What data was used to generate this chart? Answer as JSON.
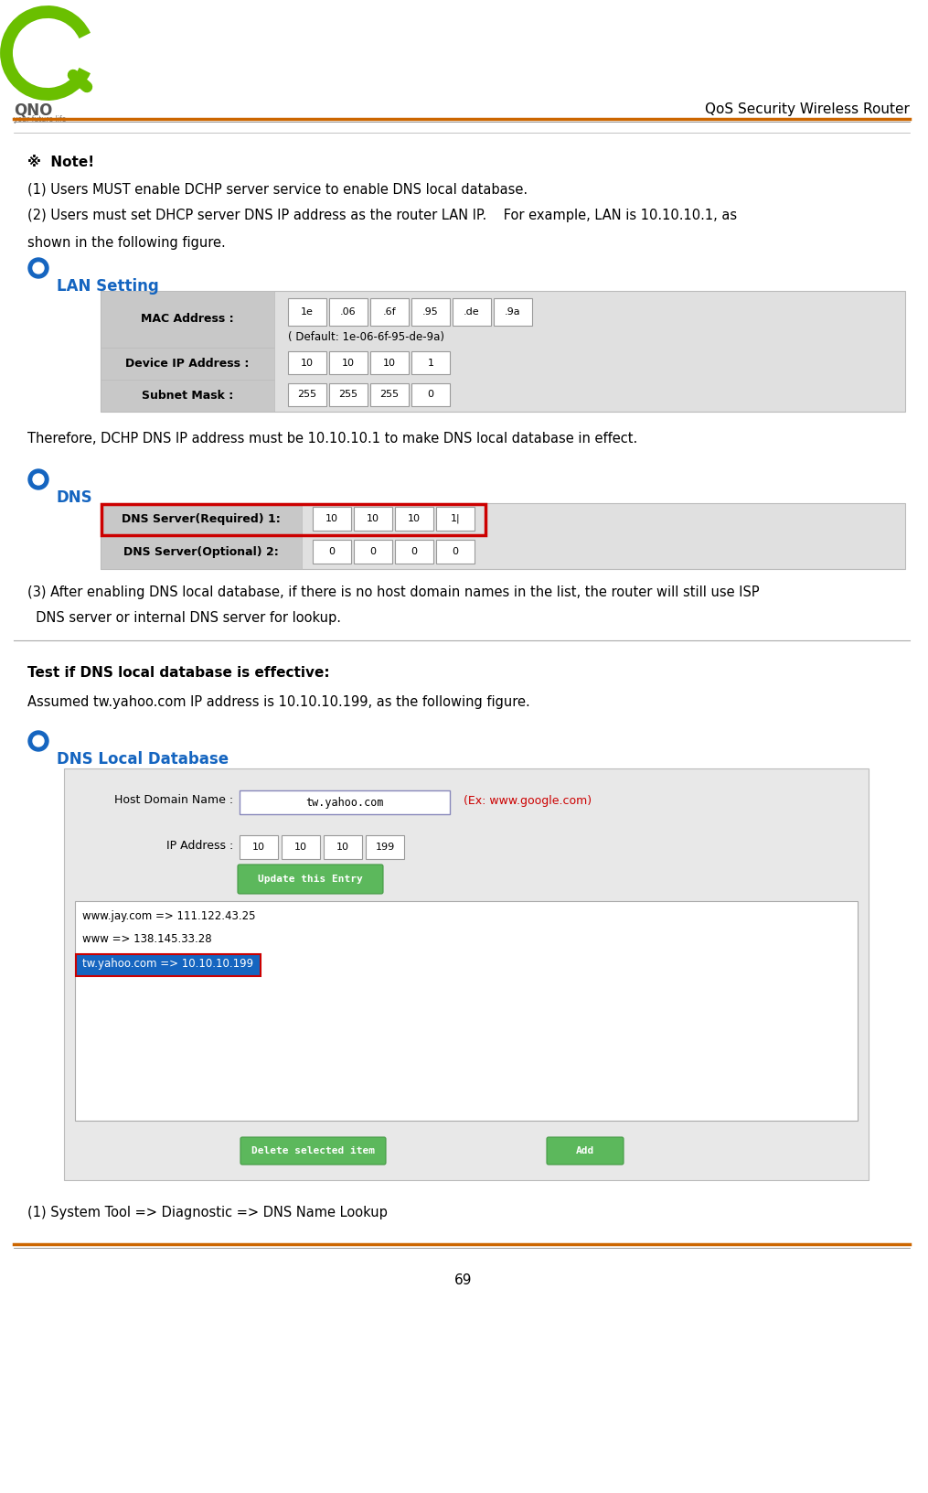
{
  "page_width": 10.15,
  "page_height": 16.32,
  "bg_color": "#ffffff",
  "header_text": "QoS Security Wireless Router",
  "note_bold": "※  Note!",
  "line1": "(1) Users MUST enable DCHP server service to enable DNS local database.",
  "line2a": "(2) Users must set DHCP server DNS IP address as the router LAN IP.    For example, LAN is 10.10.10.1, as",
  "line2b": "shown in the following figure.",
  "lan_section_title": "LAN Setting",
  "bullet_color": "#1565c0",
  "mac_label": "MAC Address :",
  "mac_values": [
    "1e",
    ".06",
    ".6f",
    ".95",
    ".de",
    ".9a"
  ],
  "mac_default": "( Default: 1e-06-6f-95-de-9a)",
  "device_ip_label": "Device IP Address :",
  "device_ip_values": [
    "10",
    "10",
    "10",
    "1"
  ],
  "subnet_label": "Subnet Mask :",
  "subnet_values": [
    "255",
    "255",
    "255",
    "0"
  ],
  "therefore_text": "Therefore, DCHP DNS IP address must be 10.10.10.1 to make DNS local database in effect.",
  "dns_section_title": "DNS",
  "dns_req_label": "DNS Server(Required) 1:",
  "dns_req_values": [
    "10",
    "10",
    "10",
    "1|"
  ],
  "dns_opt_label": "DNS Server(Optional) 2:",
  "dns_opt_values": [
    "0",
    "0",
    "0",
    "0"
  ],
  "point3_line1": "(3) After enabling DNS local database, if there is no host domain names in the list, the router will still use ISP",
  "point3_line2": "  DNS server or internal DNS server for lookup.",
  "test_bold": "Test if DNS local database is effective:",
  "assumed_text": "Assumed tw.yahoo.com IP address is 10.10.10.199, as the following figure.",
  "dns_local_title": "DNS Local Database",
  "host_domain_label": "Host Domain Name :",
  "host_domain_value": "tw.yahoo.com",
  "host_domain_hint": "(Ex: www.google.com)",
  "host_domain_hint_color": "#cc0000",
  "ip_label": "IP Address :",
  "ip_values": [
    "10",
    "10",
    "10",
    "199"
  ],
  "update_btn_text": "Update this Entry",
  "list_entries": [
    "www.jay.com => 111.122.43.25",
    "www => 138.145.33.28",
    "tw.yahoo.com => 10.10.10.199"
  ],
  "selected_entry": "tw.yahoo.com => 10.10.10.199",
  "selected_bg": "#1565c0",
  "delete_btn_text": "Delete selected item",
  "add_btn_text": "Add",
  "btn_green": "#5cb85c",
  "system_tool_text": "(1) System Tool => Diagnostic => DNS Name Lookup",
  "footer_number": "69",
  "orange_line": "#cc6600",
  "table_bg": "#e0e0e0",
  "label_bg": "#c8c8c8",
  "cell_bg": "#ffffff",
  "cell_border": "#999999",
  "form_bg": "#e8e8e8"
}
